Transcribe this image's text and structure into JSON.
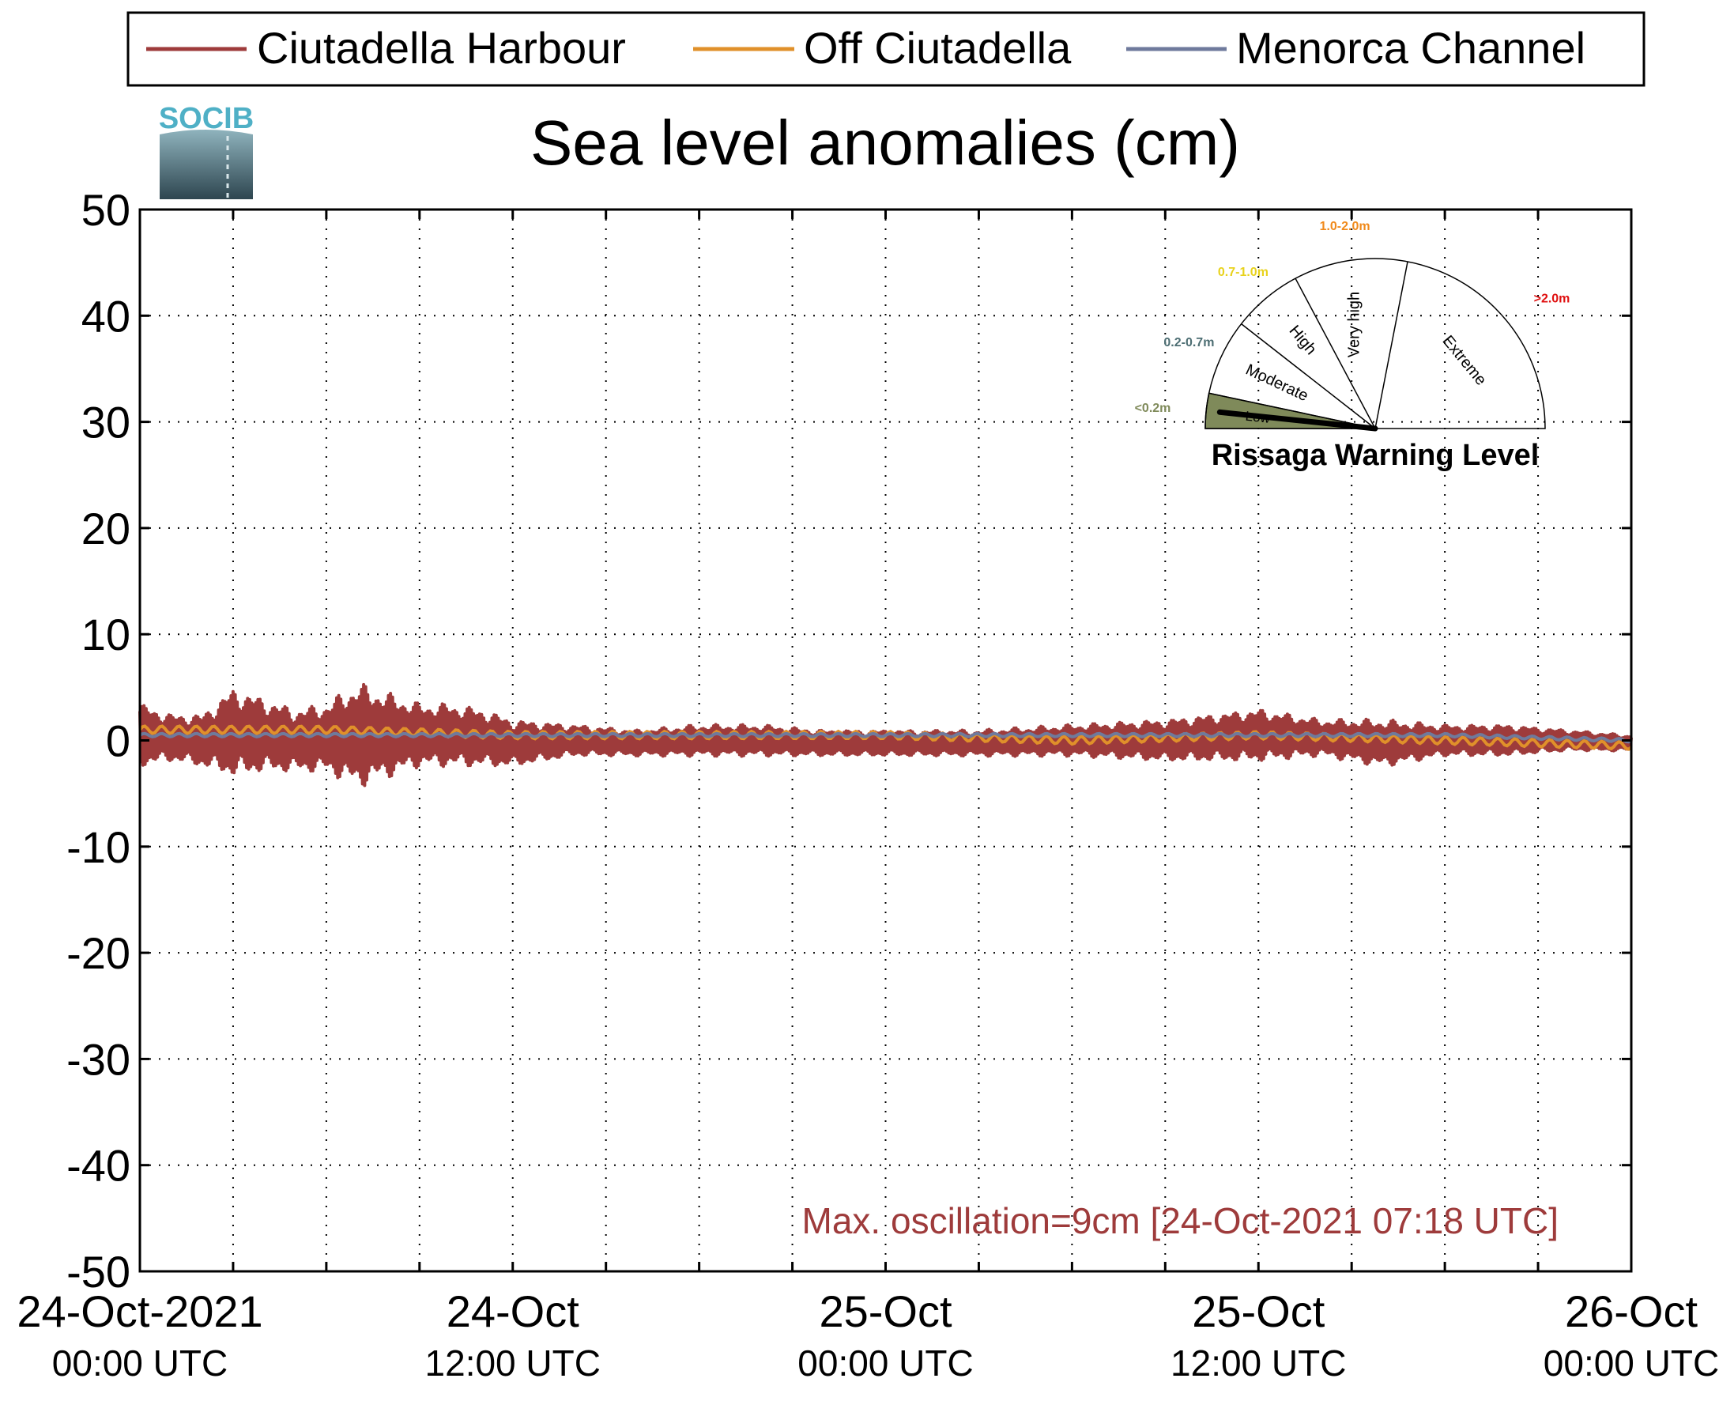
{
  "logo": {
    "text": "SOCIB"
  },
  "legend": {
    "entries": [
      {
        "name": "Ciutadella Harbour",
        "color": "#9e3b3b"
      },
      {
        "name": "Off Ciutadella",
        "color": "#e0902a"
      },
      {
        "name": "Menorca Channel",
        "color": "#6f7a9c"
      }
    ],
    "placement": "top"
  },
  "chart_data": {
    "type": "line",
    "title": "Sea level anomalies (cm)",
    "xlabel": "",
    "ylabel": "",
    "ylim": [
      -50,
      50
    ],
    "yticks": [
      "50",
      "40",
      "30",
      "20",
      "10",
      "0",
      "-10",
      "-20",
      "-30",
      "-40",
      "-50"
    ],
    "xlim": [
      "2021-10-24T00:00",
      "2021-10-26T00:00"
    ],
    "xtick_labels": [
      {
        "date": "24-Oct-2021",
        "time": "00:00 UTC"
      },
      {
        "date": "24-Oct",
        "time": "12:00 UTC"
      },
      {
        "date": "25-Oct",
        "time": "00:00 UTC"
      },
      {
        "date": "25-Oct",
        "time": "12:00 UTC"
      },
      {
        "date": "26-Oct",
        "time": "00:00 UTC"
      }
    ],
    "grid": true,
    "series": [
      {
        "name": "Ciutadella Harbour",
        "color": "#9e3b3b",
        "x": [
          "2021-10-24T00:00",
          "2021-10-24T01:00",
          "2021-10-24T02:00",
          "2021-10-24T03:00",
          "2021-10-24T04:00",
          "2021-10-24T05:00",
          "2021-10-24T06:00",
          "2021-10-24T07:00",
          "2021-10-24T08:00",
          "2021-10-24T09:00",
          "2021-10-24T10:00",
          "2021-10-24T11:00",
          "2021-10-24T12:00",
          "2021-10-24T14:00",
          "2021-10-24T16:00",
          "2021-10-24T18:00",
          "2021-10-24T20:00",
          "2021-10-24T22:00",
          "2021-10-25T00:00",
          "2021-10-25T03:00",
          "2021-10-25T06:00",
          "2021-10-25T09:00",
          "2021-10-25T12:00",
          "2021-10-25T14:00",
          "2021-10-25T16:00",
          "2021-10-25T18:00",
          "2021-10-25T20:00",
          "2021-10-25T22:00",
          "2021-10-26T00:00"
        ],
        "y_max": [
          3.5,
          2.5,
          2.5,
          5,
          4,
          3,
          3.5,
          5.5,
          4.5,
          3.5,
          3.5,
          3,
          2,
          1.5,
          1,
          1.5,
          1.5,
          1,
          1,
          1,
          1.5,
          2,
          3,
          2,
          2,
          1.5,
          1.5,
          1,
          0.5
        ],
        "y_min": [
          -2.5,
          -2,
          -2.5,
          -3.5,
          -3,
          -3,
          -3,
          -4.5,
          -3.5,
          -2.5,
          -2.5,
          -2.5,
          -2.5,
          -1.5,
          -1.5,
          -1.5,
          -1.5,
          -1.5,
          -1.5,
          -1.5,
          -1.5,
          -2,
          -2,
          -1.5,
          -2.5,
          -1.5,
          -1.5,
          -1,
          -1
        ]
      },
      {
        "name": "Off Ciutadella",
        "color": "#e0902a",
        "x": [
          "2021-10-24T00:00",
          "2021-10-24T06:00",
          "2021-10-24T12:00",
          "2021-10-24T18:00",
          "2021-10-25T00:00",
          "2021-10-25T06:00",
          "2021-10-25T12:00",
          "2021-10-25T18:00",
          "2021-10-26T00:00"
        ],
        "y": [
          1,
          1,
          0.5,
          0.5,
          0.5,
          0,
          0.5,
          0,
          -0.5
        ]
      },
      {
        "name": "Menorca Channel",
        "color": "#6f7a9c",
        "x": [
          "2021-10-24T00:00",
          "2021-10-24T06:00",
          "2021-10-24T12:00",
          "2021-10-24T18:00",
          "2021-10-25T00:00",
          "2021-10-25T06:00",
          "2021-10-25T12:00",
          "2021-10-25T18:00",
          "2021-10-26T00:00"
        ],
        "y": [
          0.5,
          0.5,
          0.5,
          0.5,
          0.5,
          0.5,
          0.5,
          0.5,
          0
        ]
      }
    ],
    "annotation": {
      "text": "Max. oscillation=9cm [24-Oct-2021 07:18 UTC]",
      "color": "#9e3b3b"
    }
  },
  "gauge": {
    "title": "Rissaga Warning Level",
    "levels": [
      {
        "name": "Low",
        "range": "<0.2m",
        "color": "#7f8a5a"
      },
      {
        "name": "Moderate",
        "range": "0.2-0.7m",
        "color": "#4d6e73"
      },
      {
        "name": "High",
        "range": "0.7-1.0m",
        "color": "#e8d21c"
      },
      {
        "name": "Very high",
        "range": "1.0-2.0m",
        "color": "#f08a1c"
      },
      {
        "name": "Extreme",
        "range": ">2.0m",
        "color": "#e01010"
      }
    ],
    "current_level": "Low"
  }
}
